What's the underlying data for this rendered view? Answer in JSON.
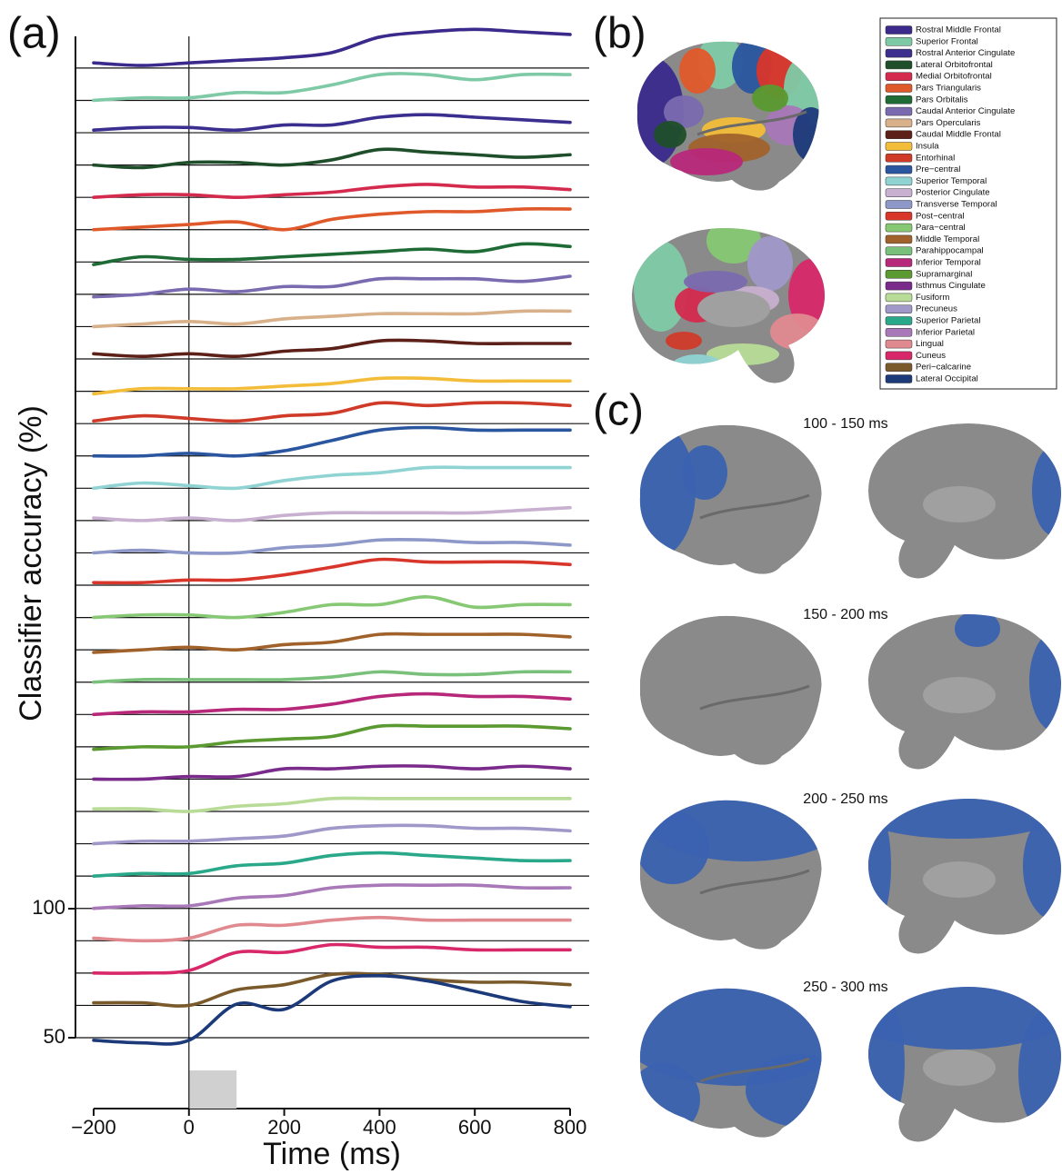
{
  "figure": {
    "panel_labels": [
      "(a)",
      "(b)",
      "(c)"
    ],
    "brain_windows": [
      "100 - 150 ms",
      "150 - 200 ms",
      "200 - 250 ms",
      "250 - 300 ms"
    ]
  },
  "chart_data": {
    "type": "line",
    "xlabel": "Time (ms)",
    "ylabel": "Classifier accuracy (%)",
    "x": [
      -200,
      -100,
      0,
      100,
      200,
      300,
      400,
      500,
      600,
      700,
      800
    ],
    "xlim": [
      -200,
      800
    ],
    "xticks": [
      {
        "value": -200,
        "label": "−200"
      },
      0,
      200,
      400,
      600,
      800
    ],
    "ylim": [
      50,
      100
    ],
    "yticks": [
      50,
      100
    ],
    "stimulus_window": [
      0,
      100
    ],
    "series": [
      {
        "name": "Rostral Middle Frontal",
        "color": "#3b2a8c",
        "values": [
          52,
          51,
          52,
          53,
          54,
          56,
          62,
          64,
          65,
          64,
          63
        ]
      },
      {
        "name": "Superior Frontal",
        "color": "#7fcaa6",
        "values": [
          50,
          51,
          51,
          53,
          53,
          56,
          60,
          60,
          58,
          60,
          60
        ]
      },
      {
        "name": "Rostral Anterior Cingulate",
        "color": "#3a2e8e",
        "values": [
          51,
          52,
          52,
          51,
          53,
          53,
          56,
          57,
          56,
          55,
          54
        ]
      },
      {
        "name": "Lateral Orbitofrontal",
        "color": "#1f4f2a",
        "values": [
          50,
          49,
          51,
          51,
          50,
          52,
          56,
          55,
          54,
          53,
          54
        ]
      },
      {
        "name": "Medial Orbitofrontal",
        "color": "#d42a4e",
        "values": [
          50,
          51,
          51,
          50,
          51,
          52,
          54,
          55,
          54,
          54,
          53
        ]
      },
      {
        "name": "Pars Triangularis",
        "color": "#e0592a",
        "values": [
          50,
          51,
          52,
          53,
          50,
          54,
          56,
          57,
          57,
          58,
          58
        ]
      },
      {
        "name": "Pars Orbitalis",
        "color": "#1e6b35",
        "values": [
          49,
          52,
          51,
          51,
          52,
          53,
          54,
          55,
          54,
          57,
          56
        ]
      },
      {
        "name": "Caudal Anterior Cingulate",
        "color": "#7a6ab0",
        "values": [
          49,
          50,
          52,
          51,
          53,
          53,
          56,
          56,
          56,
          55,
          57
        ]
      },
      {
        "name": "Pars Opercularis",
        "color": "#d8b08a",
        "values": [
          50,
          51,
          52,
          51,
          53,
          54,
          55,
          55,
          55,
          56,
          56
        ]
      },
      {
        "name": "Caudal Middle Frontal",
        "color": "#5c2018",
        "values": [
          52,
          51,
          52,
          51,
          53,
          54,
          57,
          57,
          56,
          56,
          56
        ]
      },
      {
        "name": "Insula",
        "color": "#f3bd3a",
        "values": [
          49,
          51,
          51,
          51,
          52,
          53,
          55,
          55,
          54,
          54,
          54
        ]
      },
      {
        "name": "Entorhinal",
        "color": "#d03a28",
        "values": [
          51,
          53,
          52,
          51,
          53,
          54,
          58,
          57,
          58,
          58,
          57
        ]
      },
      {
        "name": "Pre−central",
        "color": "#2a56a0",
        "values": [
          50,
          50,
          51,
          50,
          52,
          56,
          60,
          61,
          60,
          60,
          60
        ]
      },
      {
        "name": "Superior Temporal",
        "color": "#8fd3d3",
        "values": [
          50,
          52,
          51,
          50,
          53,
          55,
          56,
          58,
          58,
          58,
          58
        ]
      },
      {
        "name": "Posterior Cingulate",
        "color": "#c8b0d0",
        "values": [
          51,
          50,
          51,
          50,
          52,
          53,
          53,
          53,
          53,
          54,
          55
        ]
      },
      {
        "name": "Transverse Temporal",
        "color": "#8d98c8",
        "values": [
          50,
          51,
          50,
          50,
          52,
          53,
          55,
          55,
          54,
          54,
          53
        ]
      },
      {
        "name": "Post−central",
        "color": "#d8362a",
        "values": [
          51,
          51,
          52,
          52,
          54,
          57,
          60,
          59,
          59,
          59,
          58
        ]
      },
      {
        "name": "Para−central",
        "color": "#86c873",
        "values": [
          50,
          51,
          51,
          50,
          52,
          55,
          55,
          58,
          54,
          55,
          55
        ]
      },
      {
        "name": "Middle Temporal",
        "color": "#a0622a",
        "values": [
          49,
          50,
          51,
          50,
          52,
          53,
          56,
          56,
          56,
          56,
          55
        ]
      },
      {
        "name": "Parahippocampal",
        "color": "#79c07a",
        "values": [
          50,
          51,
          51,
          51,
          51,
          52,
          54,
          53,
          53,
          54,
          54
        ]
      },
      {
        "name": "Inferior Temporal",
        "color": "#b8287a",
        "values": [
          50,
          51,
          51,
          52,
          52,
          54,
          57,
          58,
          57,
          57,
          56
        ]
      },
      {
        "name": "Supramarginal",
        "color": "#5a9a30",
        "values": [
          49,
          50,
          50,
          52,
          53,
          54,
          58,
          58,
          58,
          58,
          57
        ]
      },
      {
        "name": "Isthmus Cingulate",
        "color": "#7a2a8a",
        "values": [
          50,
          50,
          51,
          51,
          54,
          54,
          55,
          55,
          54,
          55,
          54
        ]
      },
      {
        "name": "Fusiform",
        "color": "#b8dc98",
        "values": [
          51,
          51,
          50,
          52,
          53,
          55,
          55,
          55,
          55,
          55,
          55
        ]
      },
      {
        "name": "Precuneus",
        "color": "#a098c8",
        "values": [
          50,
          51,
          51,
          52,
          53,
          56,
          57,
          57,
          56,
          56,
          55
        ]
      },
      {
        "name": "Superior Parietal",
        "color": "#2aa88a",
        "values": [
          50,
          51,
          51,
          54,
          55,
          58,
          59,
          58,
          57,
          56,
          56
        ]
      },
      {
        "name": "Inferior Parietal",
        "color": "#a878b8",
        "values": [
          50,
          51,
          51,
          54,
          55,
          58,
          59,
          59,
          59,
          58,
          58
        ]
      },
      {
        "name": "Lingual",
        "color": "#e08a90",
        "values": [
          51,
          50,
          51,
          56,
          56,
          58,
          59,
          58,
          58,
          58,
          58
        ]
      },
      {
        "name": "Cuneus",
        "color": "#d8286a",
        "values": [
          50,
          50,
          51,
          58,
          58,
          61,
          60,
          60,
          59,
          59,
          59
        ]
      },
      {
        "name": "Peri−calcarine",
        "color": "#7a5a2a",
        "values": [
          51,
          51,
          50,
          56,
          58,
          62,
          62,
          60,
          59,
          59,
          58
        ]
      },
      {
        "name": "Lateral Occipital",
        "color": "#1c3a7a",
        "values": [
          49,
          48,
          49,
          63,
          61,
          72,
          74,
          72,
          68,
          64,
          62
        ]
      }
    ]
  }
}
